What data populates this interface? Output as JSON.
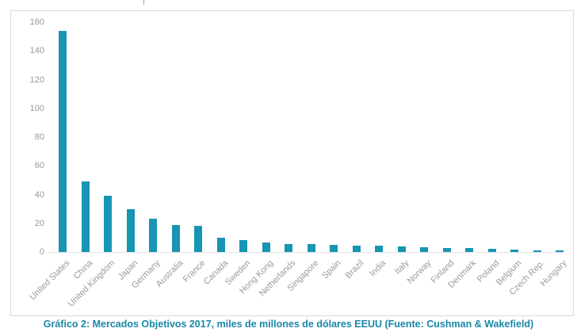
{
  "chart_data": {
    "type": "bar",
    "title": "",
    "xlabel": "",
    "ylabel": "",
    "categories": [
      "United States",
      "China",
      "United Kingdom",
      "Japan",
      "Germany",
      "Australia",
      "France",
      "Canada",
      "Sweden",
      "Hong Kong",
      "Netherlands",
      "Singapore",
      "Spain",
      "Brazil",
      "India",
      "Italy",
      "Norway",
      "Finland",
      "Denmark",
      "Poland",
      "Belgium",
      "Czech Rep.",
      "Hungary"
    ],
    "values": [
      154,
      49,
      39,
      30,
      23,
      18.5,
      18,
      10,
      8.5,
      6.5,
      5.5,
      5.5,
      5,
      4.5,
      4.5,
      4,
      3.5,
      3,
      2.5,
      2,
      1.5,
      1,
      1
    ],
    "ylim": [
      0,
      160
    ],
    "ytick_step": 20,
    "ytick_labels": [
      "0",
      "20",
      "40",
      "60",
      "80",
      "100",
      "120",
      "140",
      "160"
    ],
    "grid": false,
    "legend": "none",
    "bar_color": "#1795B3",
    "axis_text_color": "#999999",
    "axis_line_color": "#e2e2e2"
  },
  "caption": {
    "text": "Gráfico 2: Mercados Objetivos 2017, miles de millones de dólares EEUU (Fuente: Cushman & Wakefield)",
    "color": "#1A87A8"
  }
}
